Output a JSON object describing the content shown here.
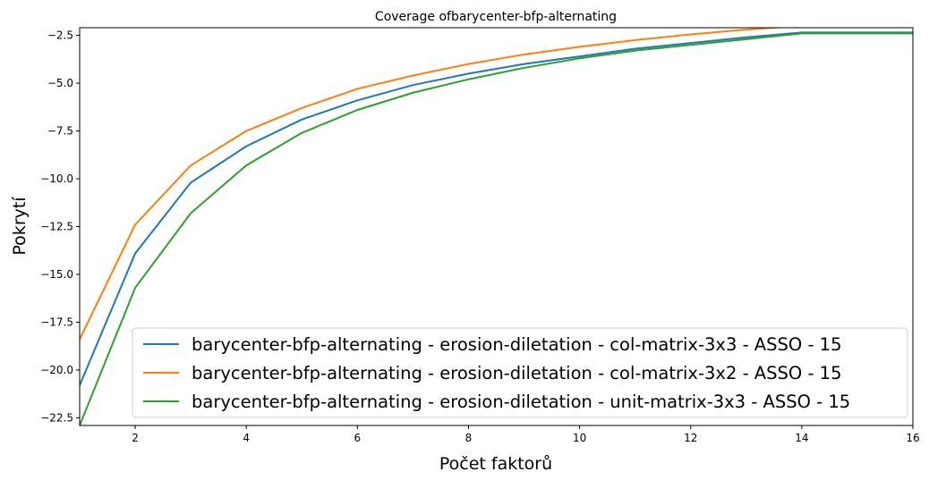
{
  "chart_data": {
    "type": "line",
    "title": "Coverage ofbarycenter-bfp-alternating",
    "xlabel": "Počet faktorů",
    "ylabel": "Pokrytí",
    "xlim": [
      1,
      16
    ],
    "ylim": [
      -22.9,
      -2.1
    ],
    "xticks": [
      2,
      4,
      6,
      8,
      10,
      12,
      14,
      16
    ],
    "yticks": [
      -2.5,
      -5.0,
      -7.5,
      -10.0,
      -12.5,
      -15.0,
      -17.5,
      -20.0,
      -22.5
    ],
    "ytick_labels": [
      "−2.5",
      "−5.0",
      "−7.5",
      "−10.0",
      "−12.5",
      "−15.0",
      "−17.5",
      "−20.0",
      "−22.5"
    ],
    "grid": false,
    "legend_position": "lower-right",
    "x": [
      1,
      2,
      3,
      4,
      5,
      6,
      7,
      8,
      9,
      10,
      11,
      12,
      13,
      14,
      15,
      16
    ],
    "series": [
      {
        "name": "barycenter-bfp-alternating - erosion-diletation - col-matrix-3x3 - ASSO - 15",
        "color": "#1f77b4",
        "values": [
          -20.8,
          -13.9,
          -10.2,
          -8.3,
          -6.9,
          -5.9,
          -5.1,
          -4.5,
          -4.0,
          -3.6,
          -3.2,
          -2.9,
          -2.6,
          -2.35,
          -2.35,
          -2.35
        ]
      },
      {
        "name": "barycenter-bfp-alternating - erosion-diletation - col-matrix-3x2 - ASSO - 15",
        "color": "#ff7f0e",
        "values": [
          -18.4,
          -12.4,
          -9.3,
          -7.5,
          -6.3,
          -5.3,
          -4.6,
          -4.0,
          -3.5,
          -3.1,
          -2.75,
          -2.45,
          -2.2,
          -2.0,
          -2.0,
          -2.0
        ]
      },
      {
        "name": "barycenter-bfp-alternating - erosion-diletation - unit-matrix-3x3 - ASSO - 15",
        "color": "#2ca02c",
        "values": [
          -22.9,
          -15.7,
          -11.8,
          -9.3,
          -7.6,
          -6.4,
          -5.5,
          -4.8,
          -4.2,
          -3.7,
          -3.3,
          -3.0,
          -2.7,
          -2.4,
          -2.4,
          -2.4
        ]
      }
    ]
  }
}
